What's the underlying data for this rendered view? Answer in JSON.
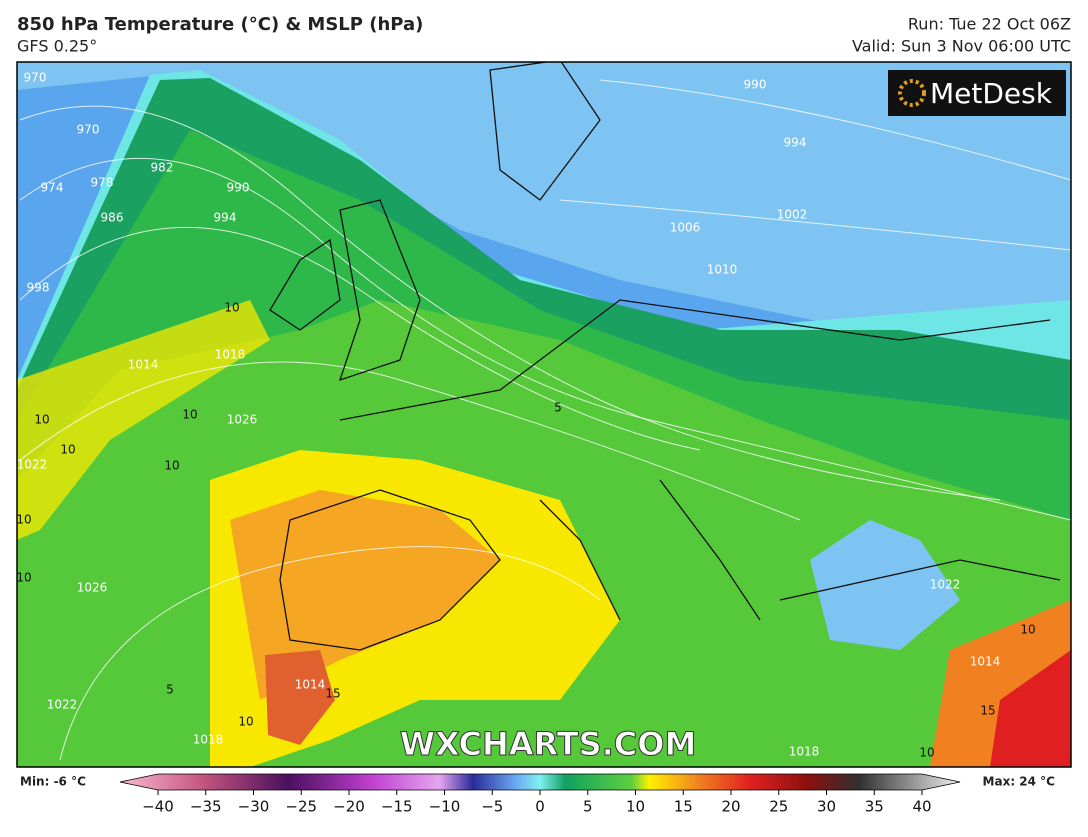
{
  "header": {
    "title": "850 hPa Temperature (°C) & MSLP (hPa)",
    "subtitle": "GFS 0.25°",
    "run": "Run: Tue 22 Oct 06Z",
    "valid": "Valid: Sun 3 Nov 06:00 UTC"
  },
  "logo": "MetDesk",
  "watermark": "WXCHARTS.COM",
  "map": {
    "isobar_labels": [
      "970",
      "970",
      "974",
      "978",
      "982",
      "986",
      "990",
      "994",
      "998",
      "1014",
      "1018",
      "1026",
      "1022",
      "1026",
      "1022",
      "1018",
      "1018",
      "990",
      "994",
      "1002",
      "1006",
      "1010",
      "1014",
      "1022",
      "1014"
    ],
    "temperature_labels": [
      "10",
      "10",
      "10",
      "10",
      "10",
      "10",
      "10",
      "5",
      "15",
      "10",
      "10",
      "15",
      "10",
      "5"
    ]
  },
  "colorbar": {
    "min_label": "Min: -6 °C",
    "max_label": "Max: 24 °C",
    "ticks": [
      {
        "value": -40,
        "label": "−40"
      },
      {
        "value": -35,
        "label": "−35"
      },
      {
        "value": -30,
        "label": "−30"
      },
      {
        "value": -25,
        "label": "−25"
      },
      {
        "value": -20,
        "label": "−20"
      },
      {
        "value": -15,
        "label": "−15"
      },
      {
        "value": -10,
        "label": "−10"
      },
      {
        "value": -5,
        "label": "−5"
      },
      0,
      5,
      10,
      15,
      20,
      25,
      30,
      35,
      40
    ]
  }
}
